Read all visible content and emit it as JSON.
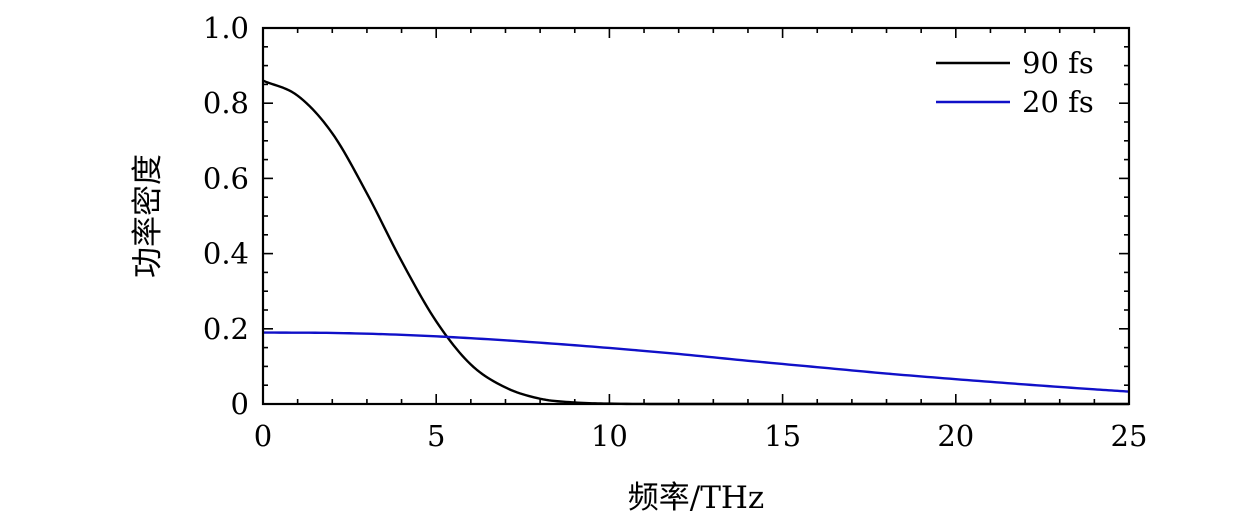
{
  "chart_data": {
    "type": "line",
    "title": "",
    "xlabel": "频率/THz",
    "ylabel": "功率密度",
    "xlim": [
      0,
      25
    ],
    "ylim": [
      0,
      1.0
    ],
    "x_ticks": [
      0,
      5,
      10,
      15,
      20,
      25
    ],
    "x_tick_labels": [
      "0",
      "5",
      "10",
      "15",
      "20",
      "25"
    ],
    "y_ticks": [
      0,
      0.2,
      0.4,
      0.6,
      0.8,
      1.0
    ],
    "y_tick_labels": [
      "0",
      "0.2",
      "0.4",
      "0.6",
      "0.8",
      "1.0"
    ],
    "grid": false,
    "legend_position": "top-right",
    "series": [
      {
        "name": "90 fs",
        "color": "#000000",
        "x": [
          0,
          1,
          2,
          3,
          4,
          5,
          6,
          7,
          8,
          9,
          10,
          12,
          15,
          20,
          25
        ],
        "y": [
          0.86,
          0.82,
          0.72,
          0.56,
          0.38,
          0.22,
          0.105,
          0.044,
          0.014,
          0.004,
          0.001,
          0.0,
          0.0,
          0.0,
          0.0
        ]
      },
      {
        "name": "20 fs",
        "color": "#1010c8",
        "x": [
          0,
          2,
          4,
          6,
          8,
          10,
          12,
          14,
          16,
          18,
          20,
          22,
          24,
          25
        ],
        "y": [
          0.19,
          0.189,
          0.184,
          0.175,
          0.163,
          0.149,
          0.133,
          0.115,
          0.098,
          0.081,
          0.066,
          0.052,
          0.039,
          0.033
        ]
      }
    ]
  }
}
